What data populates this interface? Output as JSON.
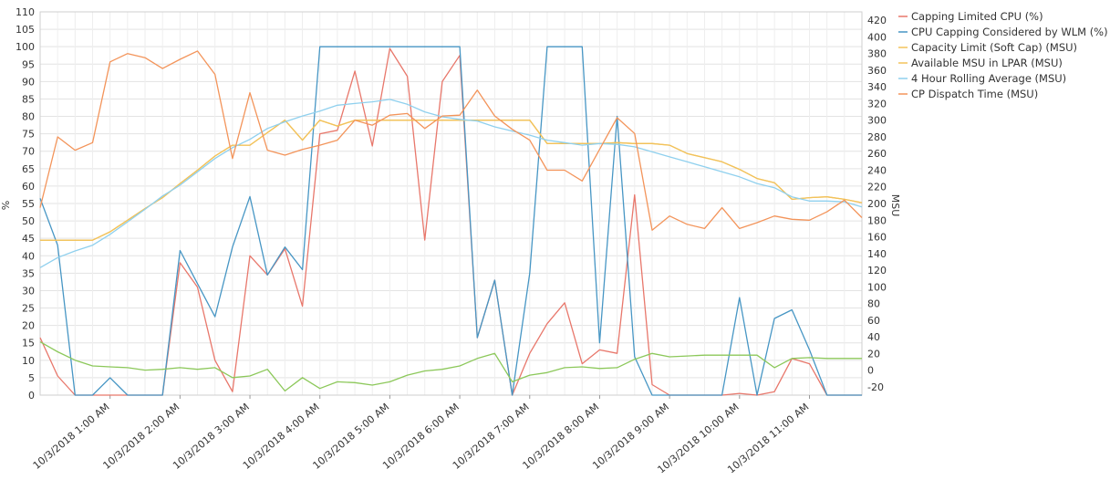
{
  "chart_data": {
    "type": "line",
    "x": [
      "10/3/2018 12:00 AM",
      "10/3/2018 12:15 AM",
      "10/3/2018 12:30 AM",
      "10/3/2018 12:45 AM",
      "10/3/2018 1:00 AM",
      "10/3/2018 1:15 AM",
      "10/3/2018 1:30 AM",
      "10/3/2018 1:45 AM",
      "10/3/2018 2:00 AM",
      "10/3/2018 2:15 AM",
      "10/3/2018 2:30 AM",
      "10/3/2018 2:45 AM",
      "10/3/2018 3:00 AM",
      "10/3/2018 3:15 AM",
      "10/3/2018 3:30 AM",
      "10/3/2018 3:45 AM",
      "10/3/2018 4:00 AM",
      "10/3/2018 4:15 AM",
      "10/3/2018 4:30 AM",
      "10/3/2018 4:45 AM",
      "10/3/2018 5:00 AM",
      "10/3/2018 5:15 AM",
      "10/3/2018 5:30 AM",
      "10/3/2018 5:45 AM",
      "10/3/2018 6:00 AM",
      "10/3/2018 6:15 AM",
      "10/3/2018 6:30 AM",
      "10/3/2018 6:45 AM",
      "10/3/2018 7:00 AM",
      "10/3/2018 7:15 AM",
      "10/3/2018 7:30 AM",
      "10/3/2018 7:45 AM",
      "10/3/2018 8:00 AM",
      "10/3/2018 8:15 AM",
      "10/3/2018 8:30 AM",
      "10/3/2018 8:45 AM",
      "10/3/2018 9:00 AM",
      "10/3/2018 9:15 AM",
      "10/3/2018 9:30 AM",
      "10/3/2018 9:45 AM",
      "10/3/2018 10:00 AM",
      "10/3/2018 10:15 AM",
      "10/3/2018 10:30 AM",
      "10/3/2018 10:45 AM",
      "10/3/2018 11:00 AM",
      "10/3/2018 11:15 AM",
      "10/3/2018 11:30 AM",
      "10/3/2018 11:45 AM"
    ],
    "x_tick_labels": [
      "10/3/2018 1:00 AM",
      "10/3/2018 2:00 AM",
      "10/3/2018 3:00 AM",
      "10/3/2018 4:00 AM",
      "10/3/2018 5:00 AM",
      "10/3/2018 6:00 AM",
      "10/3/2018 7:00 AM",
      "10/3/2018 8:00 AM",
      "10/3/2018 9:00 AM",
      "10/3/2018 10:00 AM",
      "10/3/2018 11:00 AM"
    ],
    "y_left": {
      "label": "%",
      "ylim": [
        0,
        110
      ],
      "ticks": [
        0,
        5,
        10,
        15,
        20,
        25,
        30,
        35,
        40,
        45,
        50,
        55,
        60,
        65,
        70,
        75,
        80,
        85,
        90,
        95,
        100,
        105,
        110
      ]
    },
    "y_right": {
      "label": "MSU",
      "ylim": [
        -30,
        430
      ],
      "ticks": [
        -20,
        0,
        20,
        40,
        60,
        80,
        100,
        120,
        140,
        160,
        180,
        200,
        220,
        240,
        260,
        280,
        300,
        320,
        340,
        360,
        380,
        400,
        420
      ]
    },
    "grid": true,
    "legend_position": "right",
    "series": [
      {
        "name": "Capping Limited CPU (%)",
        "axis": "left",
        "color": "#e8776b",
        "values": [
          16.5,
          5.5,
          0,
          0,
          0,
          0,
          0,
          0,
          38,
          31,
          10,
          1,
          40,
          34.5,
          42,
          25.5,
          75,
          76,
          93,
          71.5,
          99.5,
          91.5,
          44.5,
          90,
          97.5,
          16.5,
          33,
          0,
          12,
          20.5,
          26.5,
          9,
          13,
          12,
          57.5,
          3,
          0,
          0,
          0,
          0,
          0.5,
          0,
          1,
          10.5,
          9,
          0,
          0,
          0
        ]
      },
      {
        "name": "CPU Capping Considered by WLM (%)",
        "axis": "left",
        "color": "#4796c4",
        "values": [
          56.5,
          43,
          0,
          0,
          5,
          0,
          0,
          0,
          41.5,
          32,
          22.5,
          42.5,
          57,
          34.5,
          42.5,
          36,
          100,
          100,
          100,
          100,
          100,
          100,
          100,
          100,
          100,
          16.5,
          33,
          0,
          35,
          100,
          100,
          100,
          15,
          80,
          11,
          0,
          0,
          0,
          0,
          0,
          28,
          0,
          22,
          24.5,
          13,
          0,
          0,
          0
        ]
      },
      {
        "name": "Capacity Limit (Soft Cap) (MSU)",
        "axis": "right",
        "color": "#f2c25a",
        "values": [
          156,
          156,
          156,
          156,
          166,
          180,
          194,
          207,
          224,
          240,
          257,
          270,
          270,
          285,
          300,
          276,
          300,
          293,
          300,
          300,
          300,
          300,
          300,
          300,
          300,
          300,
          300,
          300,
          300,
          272,
          272,
          272,
          272,
          273,
          272,
          272,
          270,
          260,
          255,
          250,
          241,
          230,
          225,
          205,
          207,
          208,
          205,
          201
        ]
      },
      {
        "name": "Available MSU in LPAR (MSU)",
        "axis": "right",
        "color": "#f2c25a",
        "values": [
          156,
          156,
          156,
          156,
          166,
          180,
          194,
          207,
          224,
          240,
          257,
          270,
          270,
          285,
          300,
          276,
          300,
          293,
          300,
          300,
          300,
          300,
          300,
          300,
          300,
          300,
          300,
          300,
          300,
          272,
          272,
          272,
          272,
          273,
          272,
          272,
          270,
          260,
          255,
          250,
          241,
          230,
          225,
          205,
          207,
          208,
          205,
          201
        ]
      },
      {
        "name": "4 Hour Rolling Average (MSU)",
        "axis": "right",
        "color": "#8fd0ee",
        "values": [
          123,
          135,
          143,
          150,
          163,
          178,
          193,
          209,
          222,
          238,
          254,
          267,
          277,
          290,
          298,
          305,
          311,
          318,
          320,
          322,
          325,
          319,
          310,
          304,
          301,
          299,
          292,
          287,
          282,
          276,
          273,
          270,
          272,
          271,
          268,
          262,
          256,
          250,
          244,
          238,
          232,
          224,
          219,
          208,
          203,
          203,
          202,
          196
        ]
      },
      {
        "name": "CP Dispatch Time (MSU)",
        "axis": "right",
        "color": "#f3945a",
        "values": [
          195,
          280,
          264,
          273,
          370,
          380,
          375,
          362,
          373,
          383,
          355,
          254,
          333,
          264,
          258,
          265,
          270,
          276,
          300,
          294,
          306,
          308,
          290,
          305,
          306,
          336,
          305,
          289,
          276,
          240,
          240,
          227,
          265,
          303,
          284,
          168,
          185,
          175,
          170,
          195,
          170,
          177,
          185,
          181,
          180,
          190,
          204,
          183
        ]
      },
      {
        "name": "CP Dispatch Time (MSU) green",
        "axis": "right",
        "color": "#8cc85a",
        "values": [
          34,
          22,
          12,
          5,
          4,
          3,
          0,
          1,
          3,
          1,
          3,
          -9,
          -7,
          1,
          -25,
          -9,
          -22,
          -14,
          -15,
          -18,
          -14,
          -6,
          -1,
          1,
          5,
          14,
          20,
          -14,
          -6,
          -3,
          3,
          4,
          2,
          3,
          13,
          20,
          16,
          17,
          18,
          18,
          18,
          18,
          3,
          14,
          15,
          14,
          14,
          14
        ]
      }
    ]
  },
  "legend": {
    "items": [
      {
        "label": "Capping Limited CPU (%)",
        "color": "#e8776b"
      },
      {
        "label": "CPU Capping Considered by WLM (%)",
        "color": "#4796c4"
      },
      {
        "label": "Capacity Limit (Soft Cap) (MSU)",
        "color": "#f2c25a"
      },
      {
        "label": "Available MSU in LPAR (MSU)",
        "color": "#f2c25a"
      },
      {
        "label": "4 Hour Rolling Average (MSU)",
        "color": "#8fd0ee"
      },
      {
        "label": "CP Dispatch Time (MSU)",
        "color": "#f3945a"
      }
    ]
  }
}
